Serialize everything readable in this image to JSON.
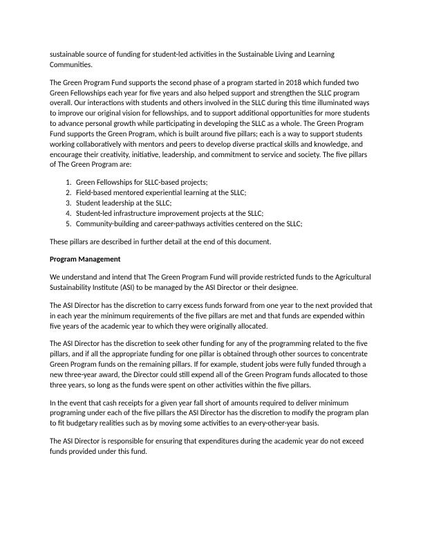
{
  "intro_tail": "sustainable source of funding for student-led activities in the Sustainable Living and Learning Communities.",
  "para2": "The Green Program Fund supports the second phase of a program started in 2018 which funded two Green Fellowships each year for five years and also helped support and strengthen the SLLC program overall. Our interactions with students and others involved in the SLLC during this time illuminated ways to improve our original vision for fellowships, and to support additional opportunities for more students to advance personal growth while participating in developing the SLLC as a whole. The Green Program Fund supports the Green Program, which is built around five pillars; each is a way to support students working collaboratively with mentors and peers to develop diverse practical skills and knowledge, and encourage their creativity, initiative, leadership, and commitment to service and society.  The five pillars of The Green Program are:",
  "pillars": [
    "Green Fellowships for SLLC-based projects;",
    "Field-based mentored experiential learning at the SLLC;",
    "Student leadership at the SLLC;",
    "Student-led infrastructure improvement projects at the SLLC;",
    "Community-building and career-pathways activities centered on the SLLC;"
  ],
  "after_pillars": "These pillars are described in further detail at the end of this document.",
  "section_heading": "Program Management",
  "pm1": "We understand and intend that The Green Program Fund will provide restricted funds to the Agricultural Sustainability Institute (ASI) to be managed by the ASI Director or their designee.",
  "pm2": "The ASI Director has the discretion to carry excess funds forward from one year to the next provided that in each year the minimum requirements of the five pillars are met and that funds are expended within five years of the academic year to which they were originally allocated.",
  "pm3": "The ASI Director has the discretion to seek other funding for any of the programming related to the five pillars, and if all the appropriate funding for one pillar is obtained through other sources to concentrate Green Program funds on the remaining pillars. If for example, student jobs were fully funded through a new three-year award, the Director could still expend all of the Green Program funds allocated to those three years, so long as the funds were spent on other activities within the five pillars.",
  "pm4": "In the event that cash receipts for a given year fall short of amounts required to deliver minimum programing under each of the five pillars the ASI Director has the discretion to modify the program plan to fit budgetary realities such as by moving some activities to an every-other-year basis.",
  "pm5": "The ASI Director is responsible for ensuring that expenditures during the academic year do not exceed funds provided under this fund."
}
